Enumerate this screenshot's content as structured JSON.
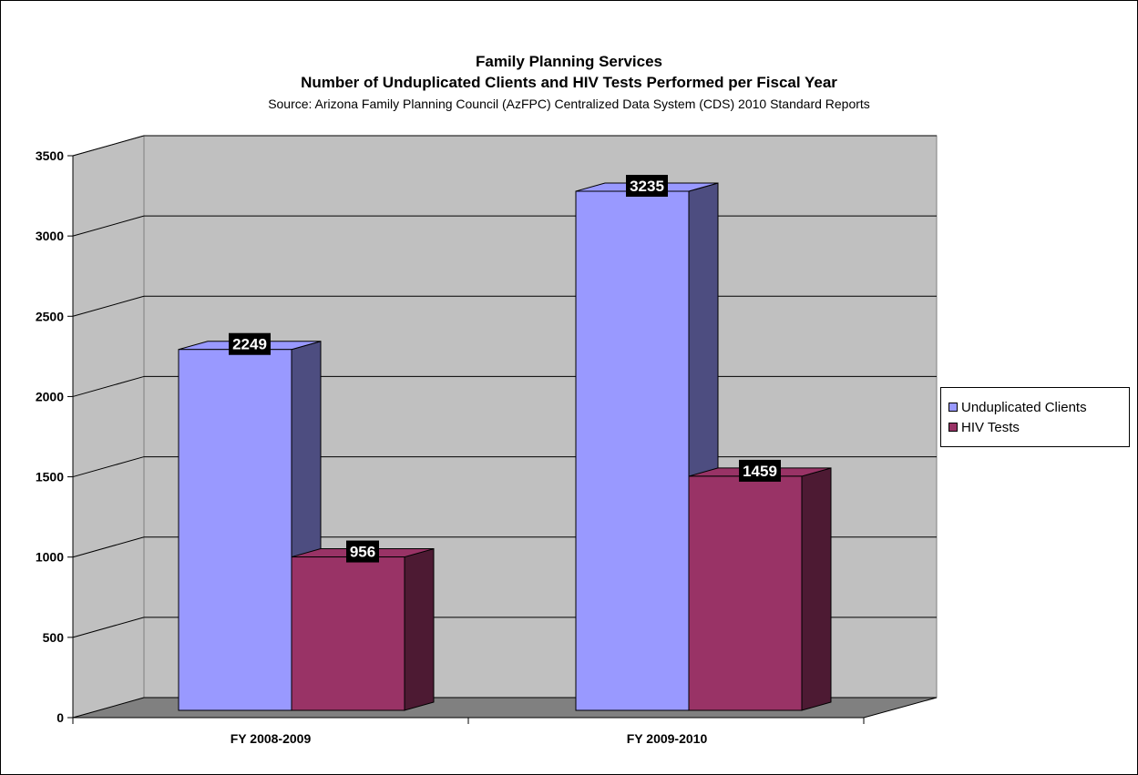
{
  "chart_data": {
    "type": "bar",
    "title": "Family Planning Services",
    "subtitle": "Number of Unduplicated Clients and HIV Tests Performed per Fiscal Year",
    "source": "Source:  Arizona Family Planning Council (AzFPC) Centralized Data System (CDS) 2010 Standard Reports",
    "categories": [
      "FY 2008-2009",
      "FY 2009-2010"
    ],
    "series": [
      {
        "name": "Unduplicated Clients",
        "values": [
          2249,
          3235
        ],
        "color": "#9999FF"
      },
      {
        "name": "HIV Tests",
        "values": [
          956,
          1459
        ],
        "color": "#993366"
      }
    ],
    "ylim": [
      0,
      3500
    ],
    "yticks": [
      "0",
      "500",
      "1000",
      "1500",
      "2000",
      "2500",
      "3000",
      "3500"
    ],
    "grid": true,
    "legend": "right",
    "data_labels": [
      "2249",
      "956",
      "3235",
      "1459"
    ]
  }
}
